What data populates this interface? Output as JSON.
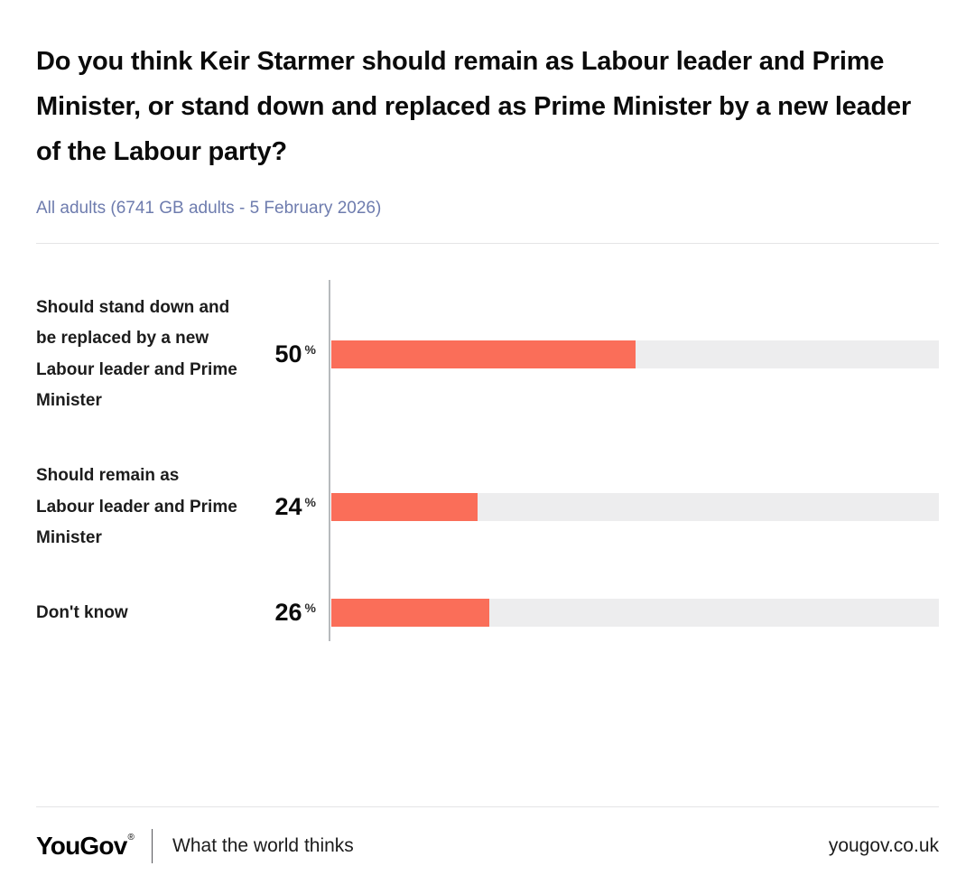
{
  "header": {
    "title": "Do you think Keir Starmer should remain as Labour leader and Prime Minister, or stand down and replaced as Prime Minister by a new leader of the Labour party?",
    "subtitle": "All adults (6741 GB adults - 5 February 2026)"
  },
  "chart_data": {
    "type": "bar",
    "orientation": "horizontal",
    "categories": [
      "Should stand down and be replaced by a new Labour leader and Prime Minister",
      "Should remain as Labour leader and Prime Minister",
      "Don't know"
    ],
    "values": [
      50,
      24,
      26
    ],
    "unit": "%",
    "xlim": [
      0,
      100
    ],
    "grid": false,
    "legend": "none",
    "bar_color": "#fa6e59",
    "track_color": "#ededee",
    "axis_color": "#b7babd"
  },
  "footer": {
    "brand": "YouGov",
    "registered_mark": "®",
    "tagline": "What the world thinks",
    "url": "yougov.co.uk"
  }
}
